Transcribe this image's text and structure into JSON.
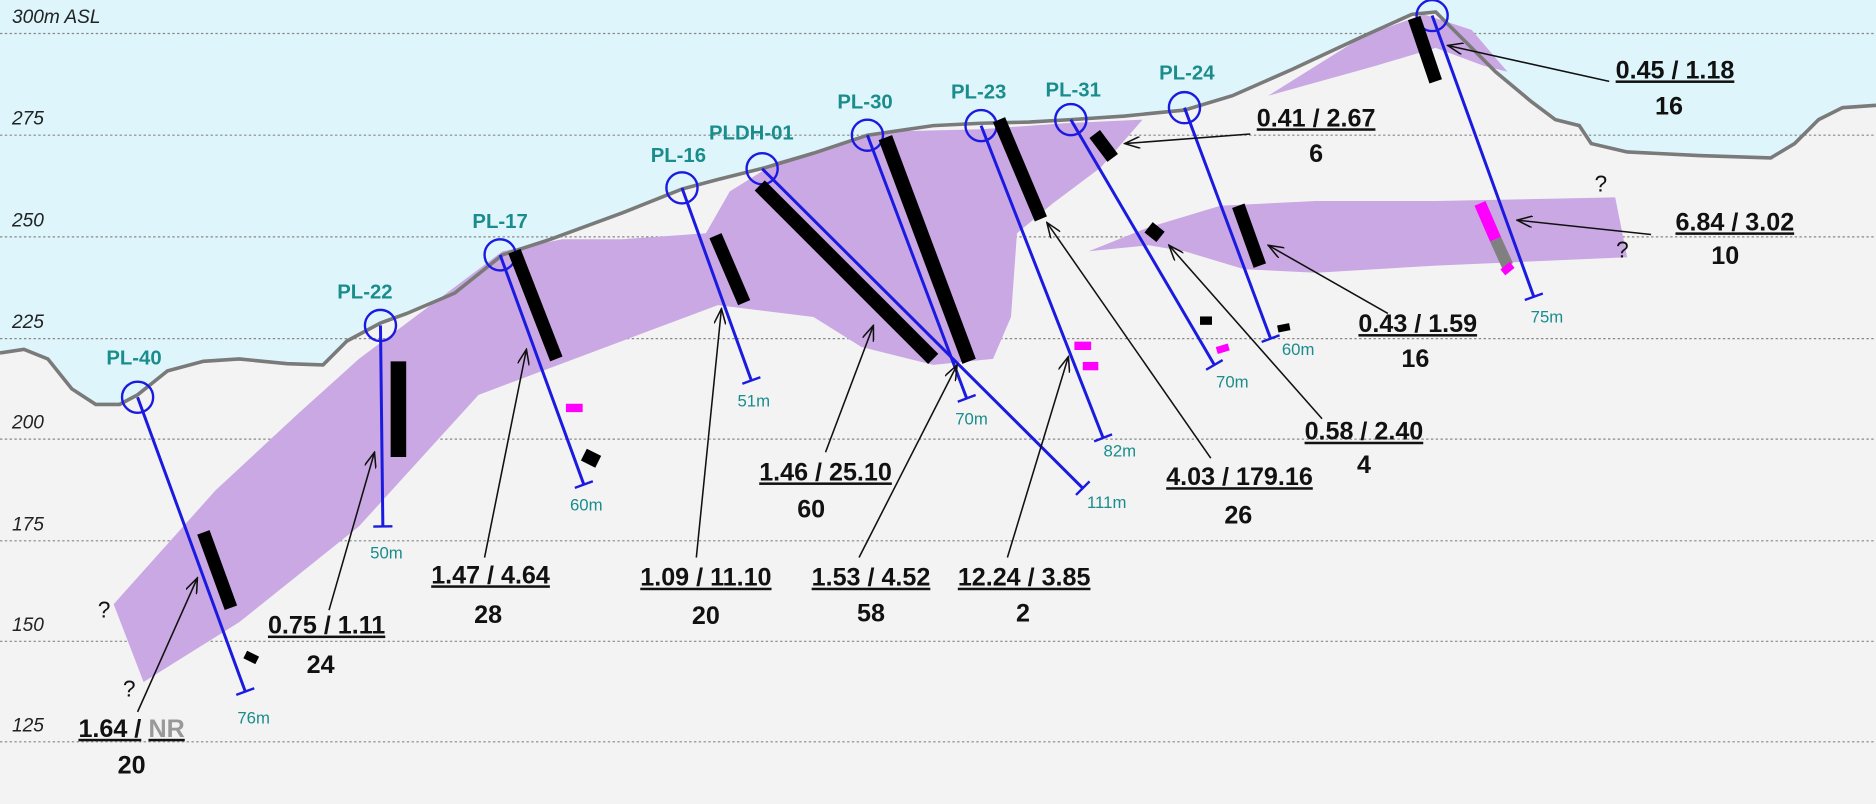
{
  "elevations": [
    "300m ASL",
    "275",
    "250",
    "225",
    "200",
    "175",
    "150",
    "125"
  ],
  "holes": [
    {
      "name": "PL-40",
      "depth": "76m"
    },
    {
      "name": "PL-22",
      "depth": "50m"
    },
    {
      "name": "PL-17",
      "depth": "60m"
    },
    {
      "name": "PL-16",
      "depth": "51m"
    },
    {
      "name": "PLDH-01",
      "depth": "111m"
    },
    {
      "name": "PL-30",
      "depth": "70m"
    },
    {
      "name": "PL-23",
      "depth": "82m"
    },
    {
      "name": "PL-31",
      "depth": "70m"
    },
    {
      "name": "PL-24",
      "depth": "60m"
    },
    {
      "depth": "75m"
    }
  ],
  "intercepts": [
    {
      "grade": "0.45 / 1.18",
      "width": "16"
    },
    {
      "grade": "0.41 / 2.67",
      "width": "6"
    },
    {
      "grade": "6.84 / 3.02",
      "width": "10"
    },
    {
      "grade": "0.43 / 1.59",
      "width": "16"
    },
    {
      "grade": "0.58 / 2.40",
      "width": "4"
    },
    {
      "grade": "4.03 / 179.16",
      "width": "26"
    },
    {
      "grade": "12.24 / 3.85",
      "width": "2"
    },
    {
      "grade": "1.53 / 4.52",
      "width": "58"
    },
    {
      "grade": "1.46 / 25.10",
      "width": "60"
    },
    {
      "grade": "1.09 / 11.10",
      "width": "20"
    },
    {
      "grade": "1.47 / 4.64",
      "width": "28"
    },
    {
      "grade": "0.75 / 1.11",
      "width": "24"
    },
    {
      "grade": "1.64 /",
      "grade_note": "NR",
      "width": "20"
    }
  ],
  "question_marks": [
    "?",
    "?",
    "?",
    "?"
  ]
}
